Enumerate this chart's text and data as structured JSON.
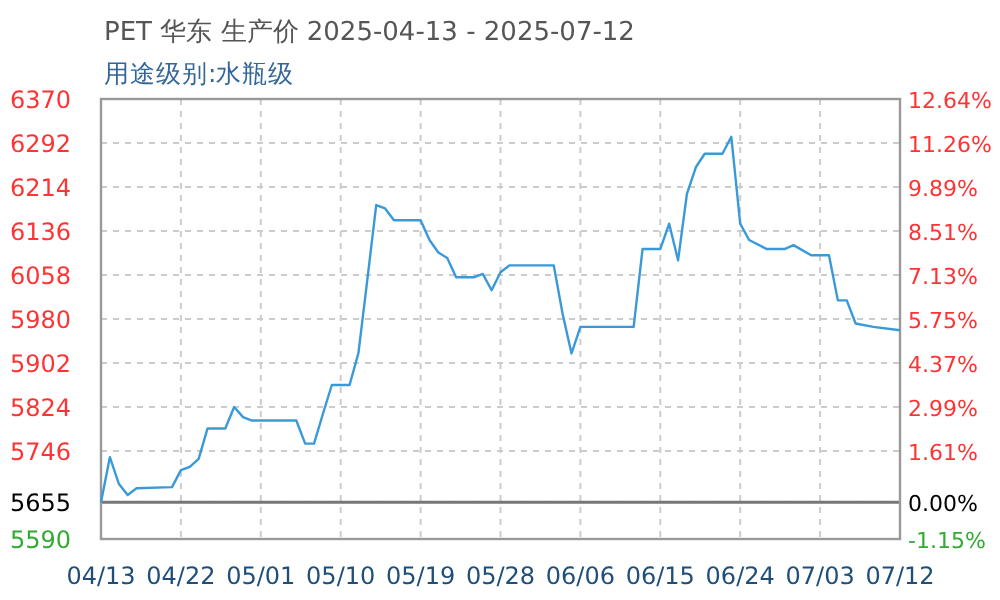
{
  "chart_data": {
    "type": "line",
    "title": "PET 华东 生产价 2025-04-13 - 2025-07-12",
    "subtitle": "用途级别:水瓶级",
    "x": [
      "2025-04-13",
      "2025-04-14",
      "2025-04-15",
      "2025-04-16",
      "2025-04-17",
      "2025-04-21",
      "2025-04-22",
      "2025-04-23",
      "2025-04-24",
      "2025-04-25",
      "2025-04-27",
      "2025-04-28",
      "2025-04-29",
      "2025-04-30",
      "2025-05-05",
      "2025-05-06",
      "2025-05-07",
      "2025-05-08",
      "2025-05-09",
      "2025-05-11",
      "2025-05-12",
      "2025-05-13",
      "2025-05-14",
      "2025-05-15",
      "2025-05-16",
      "2025-05-19",
      "2025-05-20",
      "2025-05-21",
      "2025-05-22",
      "2025-05-23",
      "2025-05-25",
      "2025-05-26",
      "2025-05-27",
      "2025-05-28",
      "2025-05-29",
      "2025-06-03",
      "2025-06-04",
      "2025-06-05",
      "2025-06-06",
      "2025-06-12",
      "2025-06-13",
      "2025-06-15",
      "2025-06-16",
      "2025-06-17",
      "2025-06-18",
      "2025-06-19",
      "2025-06-20",
      "2025-06-22",
      "2025-06-23",
      "2025-06-24",
      "2025-06-25",
      "2025-06-27",
      "2025-06-29",
      "2025-06-30",
      "2025-07-02",
      "2025-07-04",
      "2025-07-05",
      "2025-07-06",
      "2025-07-07",
      "2025-07-09",
      "2025-07-12"
    ],
    "series": [
      {
        "color": "#3a9ad9",
        "values": [
          5655,
          5735,
          5688,
          5668,
          5680,
          5682,
          5712,
          5718,
          5732,
          5786,
          5786,
          5824,
          5806,
          5800,
          5800,
          5759,
          5759,
          5812,
          5863,
          5863,
          5920,
          6050,
          6182,
          6176,
          6155,
          6155,
          6120,
          6098,
          6088,
          6054,
          6054,
          6060,
          6031,
          6063,
          6075,
          6075,
          5989,
          5919,
          5966,
          5966,
          6104,
          6104,
          6149,
          6084,
          6202,
          6249,
          6273,
          6273,
          6303,
          6149,
          6120,
          6104,
          6104,
          6111,
          6093,
          6093,
          6013,
          6013,
          5972,
          5966,
          5960
        ]
      }
    ],
    "xlim": [
      "2025-04-13",
      "2025-07-12"
    ],
    "xticks": [
      {
        "value": "2025-04-13",
        "label": "04/13"
      },
      {
        "value": "2025-04-22",
        "label": "04/22"
      },
      {
        "value": "2025-05-01",
        "label": "05/01"
      },
      {
        "value": "2025-05-10",
        "label": "05/10"
      },
      {
        "value": "2025-05-19",
        "label": "05/19"
      },
      {
        "value": "2025-05-28",
        "label": "05/28"
      },
      {
        "value": "2025-06-06",
        "label": "06/06"
      },
      {
        "value": "2025-06-15",
        "label": "06/15"
      },
      {
        "value": "2025-06-24",
        "label": "06/24"
      },
      {
        "value": "2025-07-03",
        "label": "07/03"
      },
      {
        "value": "2025-07-12",
        "label": "07/12"
      }
    ],
    "ylim": [
      5590,
      6370
    ],
    "yticks": [
      5590,
      5655,
      5746,
      5824,
      5902,
      5980,
      6058,
      6136,
      6214,
      6292,
      6370
    ],
    "y2lim": [
      -1.15,
      12.64
    ],
    "y2ticks": [
      {
        "value": -1.15,
        "label": "-1.15%"
      },
      {
        "value": 0,
        "label": "0.00%"
      },
      {
        "value": 1.61,
        "label": "1.61%"
      },
      {
        "value": 2.99,
        "label": "2.99%"
      },
      {
        "value": 4.37,
        "label": "4.37%"
      },
      {
        "value": 5.75,
        "label": "5.75%"
      },
      {
        "value": 7.13,
        "label": "7.13%"
      },
      {
        "value": 8.51,
        "label": "8.51%"
      },
      {
        "value": 9.89,
        "label": "9.89%"
      },
      {
        "value": 11.26,
        "label": "11.26%"
      },
      {
        "value": 12.64,
        "label": "12.64%"
      }
    ],
    "ref_lines": [
      {
        "axis": "y",
        "value": 5655,
        "color": "#777777"
      }
    ],
    "grid": true,
    "marker": "none",
    "line_style": "solid"
  }
}
